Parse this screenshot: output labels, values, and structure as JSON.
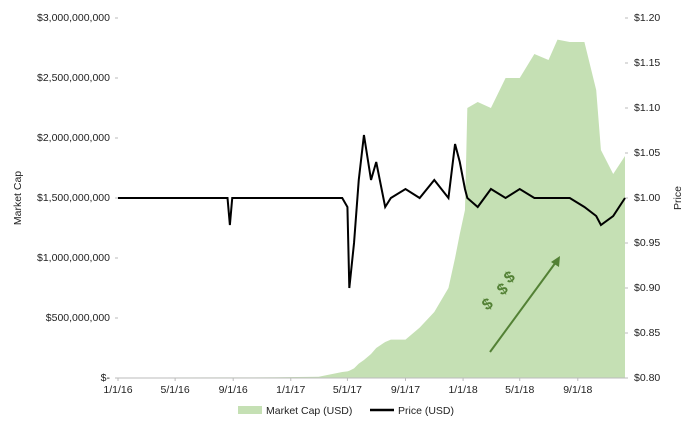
{
  "chart_data": {
    "type": "area-line",
    "x": [
      "2016-01-01",
      "2016-04-01",
      "2016-08-20",
      "2016-08-25",
      "2016-08-30",
      "2016-12-01",
      "2017-03-01",
      "2017-04-20",
      "2017-05-01",
      "2017-05-05",
      "2017-05-15",
      "2017-05-25",
      "2017-06-05",
      "2017-06-20",
      "2017-07-01",
      "2017-07-20",
      "2017-08-01",
      "2017-09-01",
      "2017-10-01",
      "2017-11-01",
      "2017-12-01",
      "2017-12-15",
      "2017-12-25",
      "2018-01-05",
      "2018-01-10",
      "2018-02-01",
      "2018-03-01",
      "2018-04-01",
      "2018-05-01",
      "2018-06-01",
      "2018-07-01",
      "2018-07-20",
      "2018-08-15",
      "2018-09-15",
      "2018-10-10",
      "2018-10-20",
      "2018-11-15",
      "2018-12-10"
    ],
    "series": [
      {
        "name": "Market Cap (USD)",
        "color": "#c5e0b4",
        "kind": "area",
        "axis": "y",
        "values": [
          3000000,
          4000000,
          5000000,
          5000000,
          5000000,
          6000000,
          10000000,
          50000000,
          55000000,
          60000000,
          80000000,
          120000000,
          150000000,
          200000000,
          250000000,
          300000000,
          320000000,
          320000000,
          420000000,
          550000000,
          750000000,
          1000000000,
          1200000000,
          1400000000,
          2250000000,
          2300000000,
          2250000000,
          2500000000,
          2500000000,
          2700000000,
          2650000000,
          2820000000,
          2800000000,
          2800000000,
          2400000000,
          1900000000,
          1700000000,
          1850000000
        ]
      },
      {
        "name": "Price (USD)",
        "color": "#000000",
        "kind": "line",
        "axis": "y2",
        "values": [
          1.0,
          1.0,
          1.0,
          0.97,
          1.0,
          1.0,
          1.0,
          1.0,
          0.99,
          0.9,
          0.95,
          1.02,
          1.07,
          1.02,
          1.04,
          0.99,
          1.0,
          1.01,
          1.0,
          1.02,
          1.0,
          1.06,
          1.04,
          1.01,
          1.0,
          0.99,
          1.01,
          1.0,
          1.01,
          1.0,
          1.0,
          1.0,
          1.0,
          0.99,
          0.98,
          0.97,
          0.98,
          1.0
        ]
      }
    ],
    "xlim": [
      "2016-01-01",
      "2018-12-10"
    ],
    "xticks": [
      {
        "value": "2016-01-01",
        "label": "1/1/16"
      },
      {
        "value": "2016-05-01",
        "label": "5/1/16"
      },
      {
        "value": "2016-09-01",
        "label": "9/1/16"
      },
      {
        "value": "2017-01-01",
        "label": "1/1/17"
      },
      {
        "value": "2017-05-01",
        "label": "5/1/17"
      },
      {
        "value": "2017-09-01",
        "label": "9/1/17"
      },
      {
        "value": "2018-01-01",
        "label": "1/1/18"
      },
      {
        "value": "2018-05-01",
        "label": "5/1/18"
      },
      {
        "value": "2018-09-01",
        "label": "9/1/18"
      }
    ],
    "ylim": [
      0,
      3000000000
    ],
    "yticks": [
      {
        "value": 0,
        "label": "$-"
      },
      {
        "value": 500000000,
        "label": "$500,000,000"
      },
      {
        "value": 1000000000,
        "label": "$1,000,000,000"
      },
      {
        "value": 1500000000,
        "label": "$1,500,000,000"
      },
      {
        "value": 2000000000,
        "label": "$2,000,000,000"
      },
      {
        "value": 2500000000,
        "label": "$2,500,000,000"
      },
      {
        "value": 3000000000,
        "label": "$3,000,000,000"
      }
    ],
    "y2lim": [
      0.8,
      1.2
    ],
    "y2ticks": [
      {
        "value": 0.8,
        "label": "$0.80"
      },
      {
        "value": 0.85,
        "label": "$0.85"
      },
      {
        "value": 0.9,
        "label": "$0.90"
      },
      {
        "value": 0.95,
        "label": "$0.95"
      },
      {
        "value": 1.0,
        "label": "$1.00"
      },
      {
        "value": 1.05,
        "label": "$1.05"
      },
      {
        "value": 1.1,
        "label": "$1.10"
      },
      {
        "value": 1.15,
        "label": "$1.15"
      },
      {
        "value": 1.2,
        "label": "$1.20"
      }
    ],
    "ylabel": "Market Cap",
    "y2label": "Price",
    "annotation": "$$$",
    "annotation_color": "#538135",
    "legend": "bottom"
  }
}
